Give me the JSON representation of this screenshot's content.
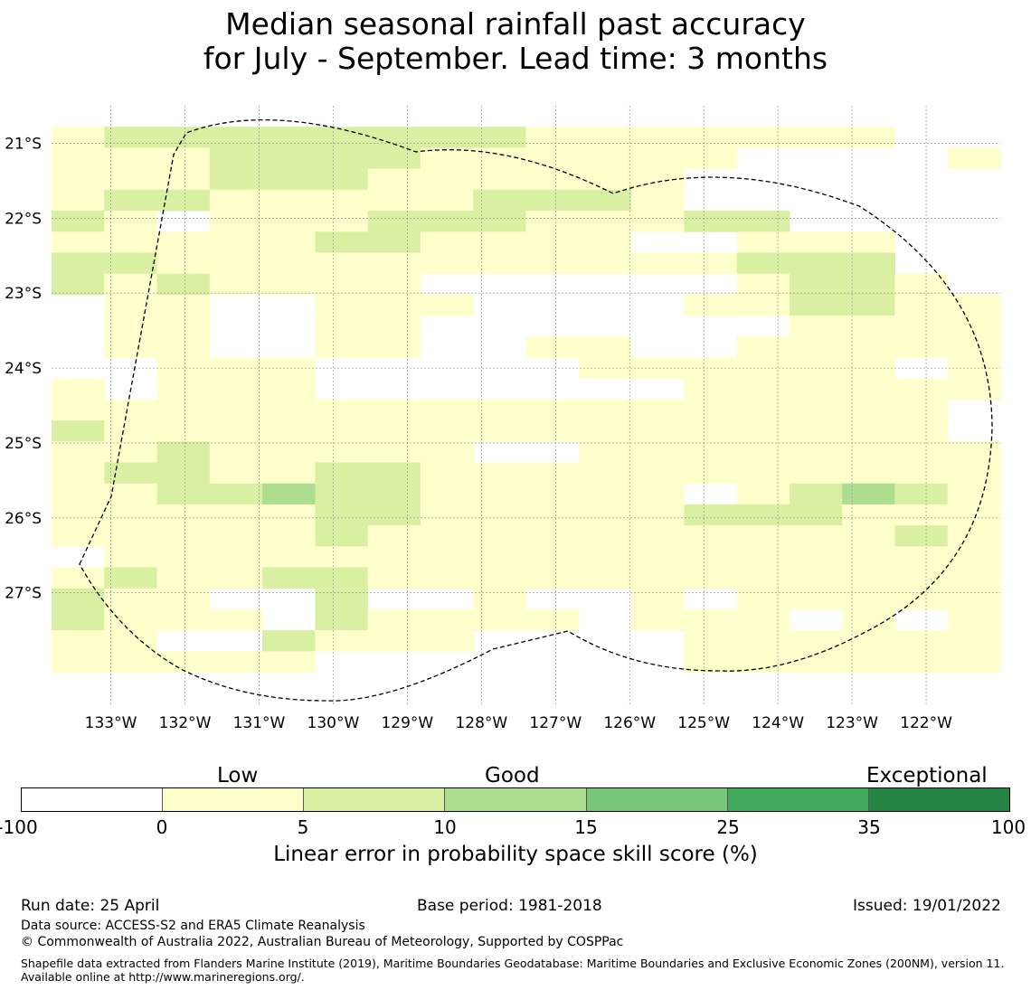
{
  "title": {
    "line1": "Median seasonal rainfall past accuracy",
    "line2": "for July - September. Lead time: 3 months"
  },
  "map": {
    "lon_range": [
      -133.8,
      -121.0
    ],
    "lat_range": [
      -28.5,
      -20.5
    ],
    "x_ticks": [
      {
        "value": -133,
        "label": "133°W"
      },
      {
        "value": -132,
        "label": "132°W"
      },
      {
        "value": -131,
        "label": "131°W"
      },
      {
        "value": -130,
        "label": "130°W"
      },
      {
        "value": -129,
        "label": "129°W"
      },
      {
        "value": -128,
        "label": "128°W"
      },
      {
        "value": -127,
        "label": "127°W"
      },
      {
        "value": -126,
        "label": "126°W"
      },
      {
        "value": -125,
        "label": "125°W"
      },
      {
        "value": -124,
        "label": "124°W"
      },
      {
        "value": -123,
        "label": "123°W"
      },
      {
        "value": -122,
        "label": "122°W"
      }
    ],
    "y_ticks": [
      {
        "value": -21,
        "label": "21°S"
      },
      {
        "value": -22,
        "label": "22°S"
      },
      {
        "value": -23,
        "label": "23°S"
      },
      {
        "value": -24,
        "label": "24°S"
      },
      {
        "value": -25,
        "label": "25°S"
      },
      {
        "value": -26,
        "label": "26°S"
      },
      {
        "value": -27,
        "label": "27°S"
      }
    ],
    "grid": true,
    "colors": [
      "#ffffff",
      "#ffffcc",
      "#d9f0a3",
      "#addd8e",
      "#78c679",
      "#41ab5d",
      "#238443"
    ],
    "cells": [
      "000000000000000000",
      "122222222111111100",
      "111222211111100001",
      "111222111111000000",
      "122111112221000000",
      "210111222111220000",
      "111112211110011100",
      "221111111111122200",
      "212111100000012210",
      "011001110000112211",
      "011001100000001111",
      "011001100110011111",
      "001110000011111101",
      "101110000000111111",
      "111111111111111110",
      "211111111111111110",
      "112111110011111111",
      "122112211111111111",
      "112232211111012321",
      "111112211111222111",
      "111112111111111121",
      "011111111111111111",
      "121122111111111111",
      "211002001001011111",
      "211102111101110101",
      "110021110000111111",
      "111110000000111111",
      "000000000000000000"
    ]
  },
  "colorbar": {
    "categories": [
      "Low",
      "Good",
      "Exceptional"
    ],
    "ticks": [
      "-100",
      "0",
      "5",
      "10",
      "15",
      "25",
      "35",
      "100"
    ],
    "label": "Linear error in probability space skill score (%)"
  },
  "footer": {
    "run_date": "Run date: 25 April",
    "base_period": "Base period: 1981-2018",
    "issued": "Issued: 19/01/2022",
    "data_source": "Data source: ACCESS-S2 and ERA5 Climate Reanalysis",
    "copyright": "© Commonwealth of Australia 2022, Australian Bureau of Meteorology, Supported by COSPPac",
    "shapefile": "Shapefile data extracted from Flanders Marine Institute (2019), Maritime Boundaries Geodatabase: Maritime Boundaries and Exclusive Economic Zones (200NM), version 11. Available online at http://www.marineregions.org/."
  }
}
